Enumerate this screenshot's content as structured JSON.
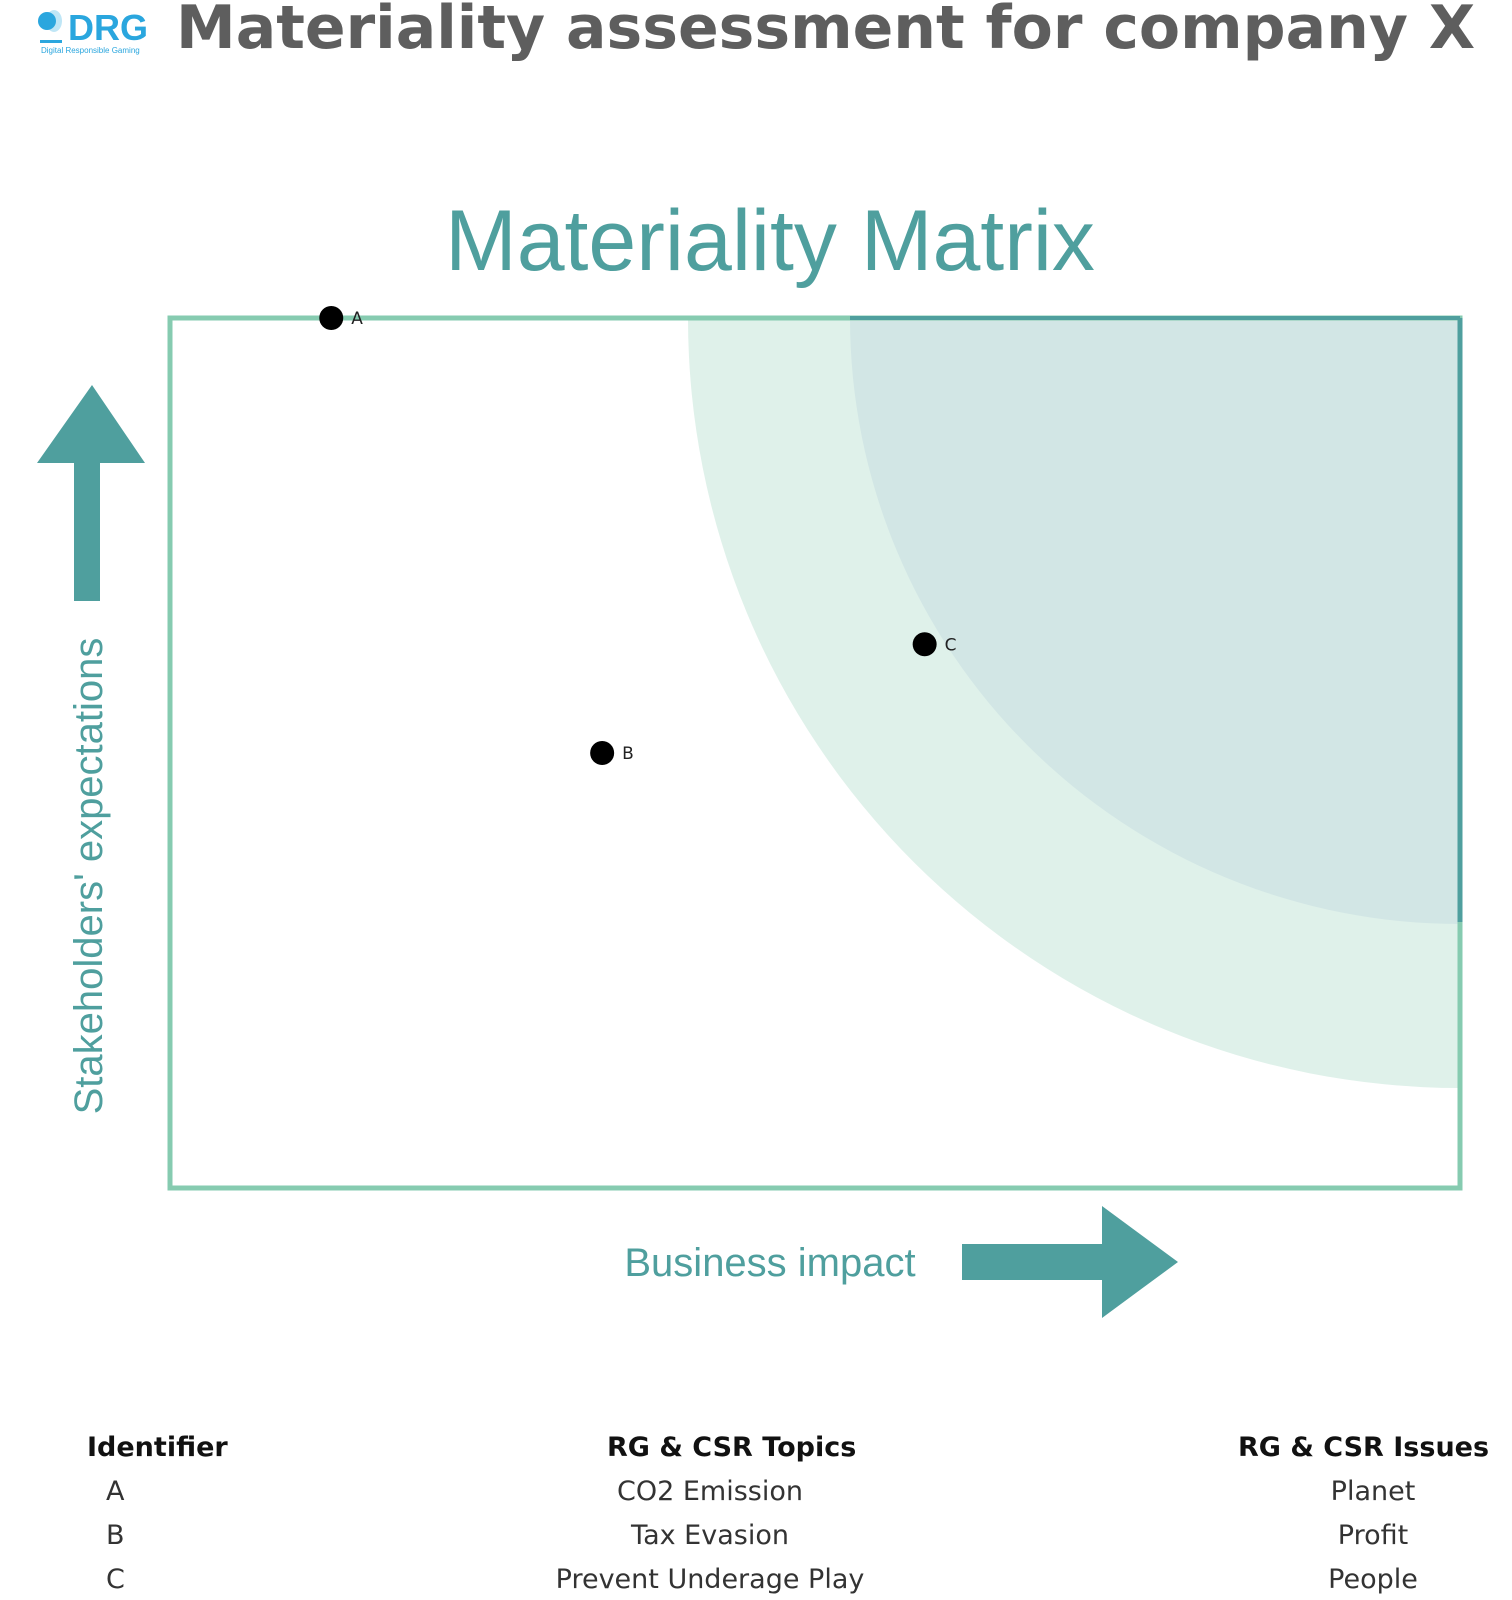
{
  "logo": {
    "text": "DRG",
    "tagline": "Digital Responsible Gaming"
  },
  "page_title": "Materiality assessment for company X",
  "chart_data": {
    "type": "scatter",
    "title": "Materiality Matrix",
    "xlabel": "Business impact",
    "ylabel": "Stakeholders' expectations",
    "xlim": [
      0,
      100
    ],
    "ylim": [
      0,
      100
    ],
    "grid": false,
    "points": [
      {
        "label": "A",
        "x": 12.5,
        "y": 100
      },
      {
        "label": "B",
        "x": 33.5,
        "y": 50
      },
      {
        "label": "C",
        "x": 58.5,
        "y": 62.5
      }
    ],
    "colors": {
      "frame": "#86cbb0",
      "axis_text": "#4f9f9e",
      "arrow": "#4f9f9e",
      "outer_zone": "#dff1ea",
      "inner_zone": "#d2e6e5",
      "points": "#000000"
    }
  },
  "table": {
    "headers": [
      "Identifier",
      "RG & CSR Topics",
      "RG & CSR Issues"
    ],
    "rows": [
      {
        "id": "A",
        "topic": "CO2 Emission",
        "issue": "Planet"
      },
      {
        "id": "B",
        "topic": "Tax Evasion",
        "issue": "Profit"
      },
      {
        "id": "C",
        "topic": "Prevent Underage Play",
        "issue": "People"
      }
    ]
  }
}
